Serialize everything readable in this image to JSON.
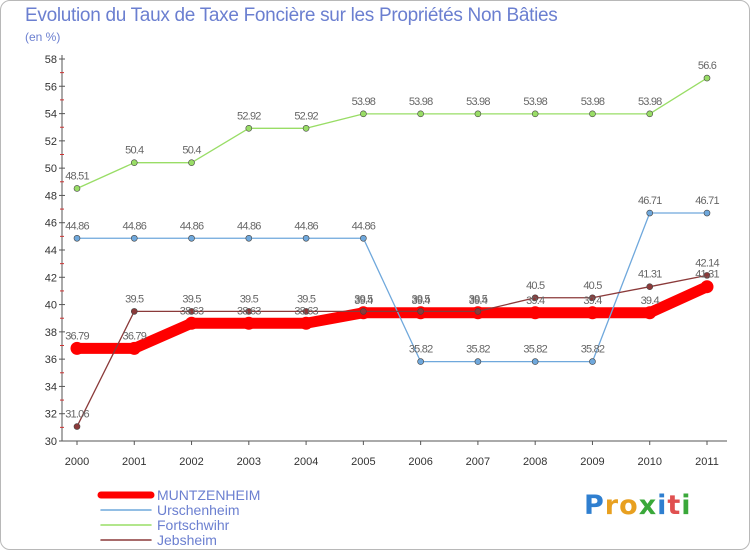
{
  "title": "Evolution du Taux de Taxe Foncière sur les Propriétés Non Bâties",
  "unit": "(en %)",
  "logo": {
    "letters": [
      "P",
      "r",
      "o",
      "x",
      "i",
      "t",
      "i"
    ],
    "colors": [
      "#2f7fd0",
      "#e8a020",
      "#e8a020",
      "#3aa83a",
      "#2f7fd0",
      "#e05050",
      "#3aa83a"
    ]
  },
  "chart_data": {
    "type": "line",
    "title": "Evolution du Taux de Taxe Foncière sur les Propriétés Non Bâties",
    "ylabel": "(en %)",
    "xlabel": "",
    "ylim": [
      30,
      58
    ],
    "yticks": [
      30,
      32,
      34,
      36,
      38,
      40,
      42,
      44,
      46,
      48,
      50,
      52,
      54,
      56,
      58
    ],
    "categories": [
      "2000",
      "2001",
      "2002",
      "2003",
      "2004",
      "2005",
      "2006",
      "2007",
      "2008",
      "2009",
      "2010",
      "2011"
    ],
    "series": [
      {
        "name": "MUNTZENHEIM",
        "color": "#ff0000",
        "emphasis": true,
        "values": [
          36.79,
          36.79,
          38.63,
          38.63,
          38.63,
          39.4,
          39.4,
          39.4,
          39.4,
          39.4,
          39.4,
          41.31
        ],
        "labels": [
          "36.79",
          "36.79",
          "38.63",
          "38.63",
          "38.63",
          "39.4",
          "39.4",
          "39.4",
          "39.4",
          "39.4",
          "39.4",
          "41.31"
        ]
      },
      {
        "name": "Urschenheim",
        "color": "#6fa8dc",
        "values": [
          44.86,
          44.86,
          44.86,
          44.86,
          44.86,
          44.86,
          35.82,
          35.82,
          35.82,
          35.82,
          46.71,
          46.71
        ],
        "labels": [
          "44.86",
          "44.86",
          "44.86",
          "44.86",
          "44.86",
          "44.86",
          "35.82",
          "35.82",
          "35.82",
          "35.82",
          "46.71",
          "46.71"
        ]
      },
      {
        "name": "Fortschwihr",
        "color": "#99dd66",
        "values": [
          48.51,
          50.4,
          50.4,
          52.92,
          52.92,
          53.98,
          53.98,
          53.98,
          53.98,
          53.98,
          53.98,
          56.6
        ],
        "labels": [
          "48.51",
          "50.4",
          "50.4",
          "52.92",
          "52.92",
          "53.98",
          "53.98",
          "53.98",
          "53.98",
          "53.98",
          "53.98",
          "56.6"
        ]
      },
      {
        "name": "Jebsheim",
        "color": "#8b3a3a",
        "values": [
          31.06,
          39.5,
          39.5,
          39.5,
          39.5,
          39.5,
          39.5,
          39.5,
          40.5,
          40.5,
          41.31,
          42.14
        ],
        "labels": [
          "31.06",
          "39.5",
          "39.5",
          "39.5",
          "39.5",
          "39.5",
          "39.5",
          "39.5",
          "40.5",
          "40.5",
          "41.31",
          "42.14"
        ]
      }
    ],
    "grid": false,
    "legend": "bottom-left"
  }
}
